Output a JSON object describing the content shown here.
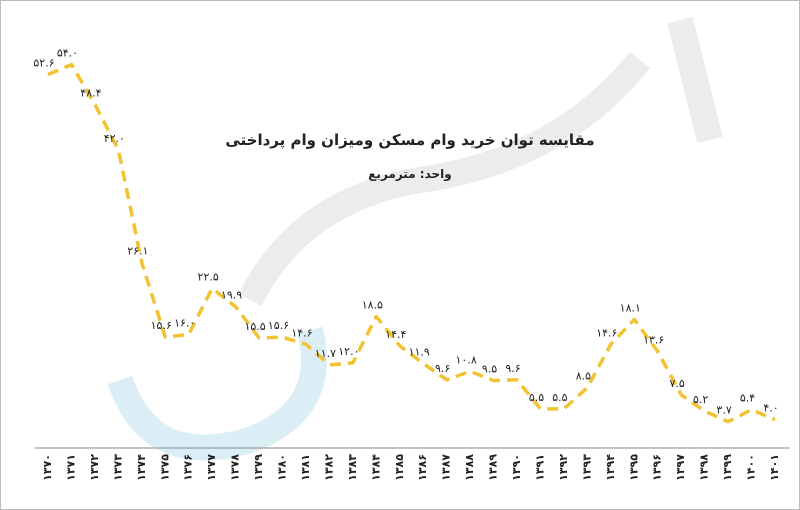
{
  "chart_data": {
    "type": "line",
    "title": "مقایسه توان خرید وام مسکن ومیزان وام پرداختی",
    "subtitle": "واحد: مترمربع",
    "categories": [
      "۱۳۷۰",
      "۱۳۷۱",
      "۱۳۷۲",
      "۱۳۷۳",
      "۱۳۷۴",
      "۱۳۷۵",
      "۱۳۷۶",
      "۱۳۷۷",
      "۱۳۷۸",
      "۱۳۷۹",
      "۱۳۸۰",
      "۱۳۸۱",
      "۱۳۸۲",
      "۱۳۸۳",
      "۱۳۸۴",
      "۱۳۸۵",
      "۱۳۸۶",
      "۱۳۸۷",
      "۱۳۸۸",
      "۱۳۸۹",
      "۱۳۹۰",
      "۱۳۹۱",
      "۱۳۹۲",
      "۱۳۹۳",
      "۱۳۹۴",
      "۱۳۹۵",
      "۱۳۹۶",
      "۱۳۹۷",
      "۱۳۹۸",
      "۱۳۹۹",
      "۱۴۰۰",
      "۱۴۰۱"
    ],
    "values": [
      52.6,
      54.0,
      48.4,
      42.0,
      26.1,
      15.6,
      16.0,
      22.5,
      19.9,
      15.5,
      15.6,
      14.6,
      11.7,
      12.0,
      18.5,
      14.4,
      11.9,
      9.6,
      10.8,
      9.5,
      9.6,
      5.5,
      5.5,
      8.5,
      14.6,
      18.1,
      13.6,
      7.5,
      5.2,
      3.7,
      5.4,
      4.0
    ],
    "value_labels": [
      "۵۲.۶",
      "۵۴.۰",
      "۴۸.۴",
      "۴۲.۰",
      "۲۶.۱",
      "۱۵.۶",
      "۱۶.۰",
      "۲۲.۵",
      "۱۹.۹",
      "۱۵.۵",
      "۱۵.۶",
      "۱۴.۶",
      "۱۱.۷",
      "۱۲.۰",
      "۱۸.۵",
      "۱۴.۴",
      "۱۱.۹",
      "۹.۶",
      "۱۰.۸",
      "۹.۵",
      "۹.۶",
      "۵.۵",
      "۵.۵",
      "۸.۵",
      "۱۴.۶",
      "۱۸.۱",
      "۱۳.۶",
      "۷.۵",
      "۵.۲",
      "۳.۷",
      "۵.۴",
      "۴.۰"
    ],
    "color": "#f2c230",
    "ylim": [
      0,
      60
    ]
  }
}
